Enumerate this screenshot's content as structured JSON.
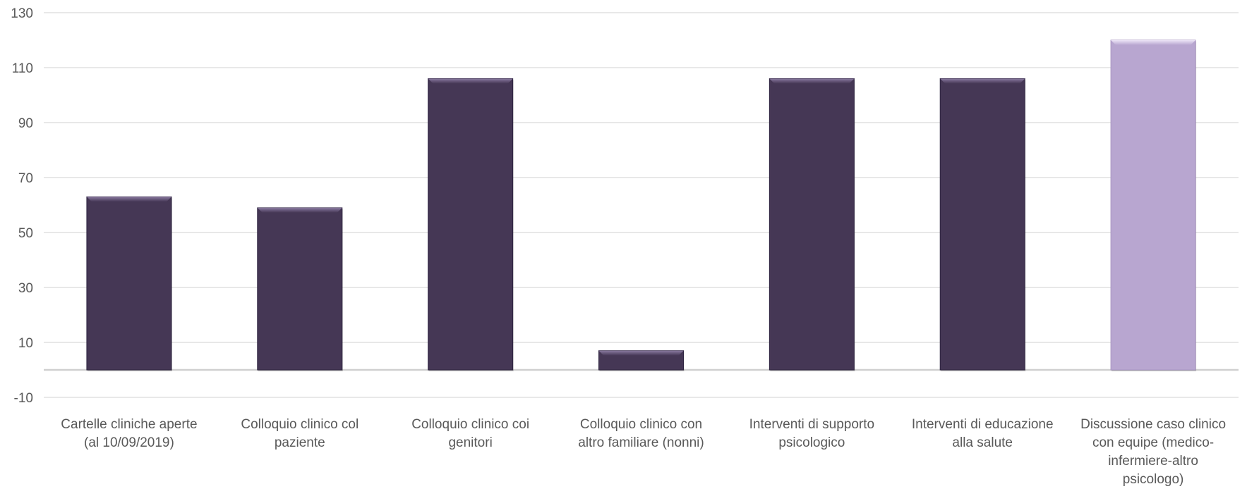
{
  "chart_data": {
    "type": "bar",
    "categories": [
      [
        "Cartelle cliniche aperte",
        "(al 10/09/2019)"
      ],
      [
        "Colloquio clinico col",
        "paziente"
      ],
      [
        "Colloquio clinico coi",
        "genitori"
      ],
      [
        "Colloquio clinico con",
        "altro familiare (nonni)"
      ],
      [
        "Interventi di supporto",
        "psicologico"
      ],
      [
        "Interventi di educazione",
        "alla salute"
      ],
      [
        "Discussione caso clinico",
        "con equipe (medico-",
        "infermiere-altro",
        "psicologo)"
      ]
    ],
    "values": [
      63,
      59,
      106,
      7,
      106,
      106,
      120
    ],
    "highlight_index": 6,
    "yticks": [
      -10,
      10,
      30,
      50,
      70,
      90,
      110,
      130
    ],
    "ylim": [
      -10,
      130
    ],
    "grid": true,
    "legend": false,
    "colors": {
      "bar": "#453755",
      "bar_highlight": "#b8a6d0",
      "grid": "#d9d9d9",
      "text": "#595959"
    }
  }
}
